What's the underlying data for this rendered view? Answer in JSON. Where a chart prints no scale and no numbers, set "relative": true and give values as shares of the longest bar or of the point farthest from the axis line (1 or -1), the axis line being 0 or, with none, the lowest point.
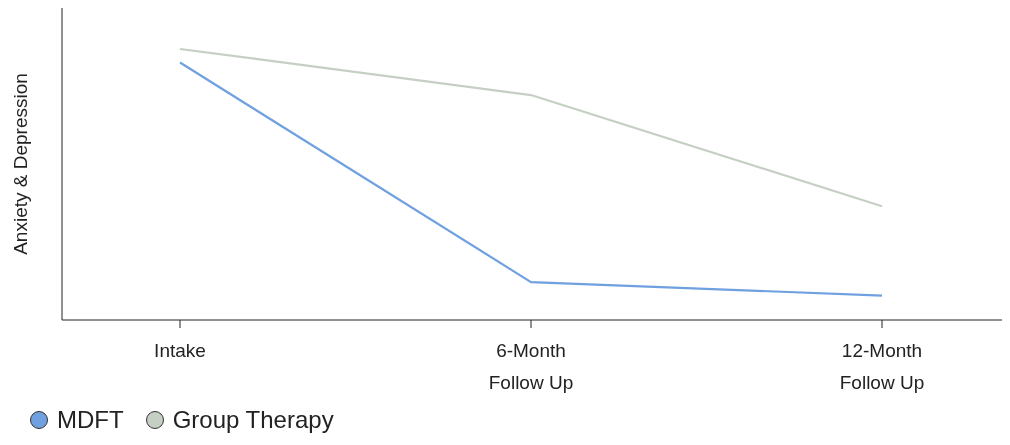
{
  "chart_data": {
    "type": "line",
    "ylabel": "Anxiety & Depression",
    "relative": true,
    "categories": [
      "Intake",
      "6-Month\nFollow Up",
      "12-Month\nFollow Up"
    ],
    "series": [
      {
        "name": "MDFT",
        "color": "#6fa0e0",
        "values": [
          0.95,
          0.14,
          0.09
        ]
      },
      {
        "name": "Group Therapy",
        "color": "#c5cfc3",
        "values": [
          1,
          0.83,
          0.42
        ]
      }
    ],
    "legend": "bottom",
    "grid": false,
    "marker": "none",
    "line_style": "solid"
  }
}
